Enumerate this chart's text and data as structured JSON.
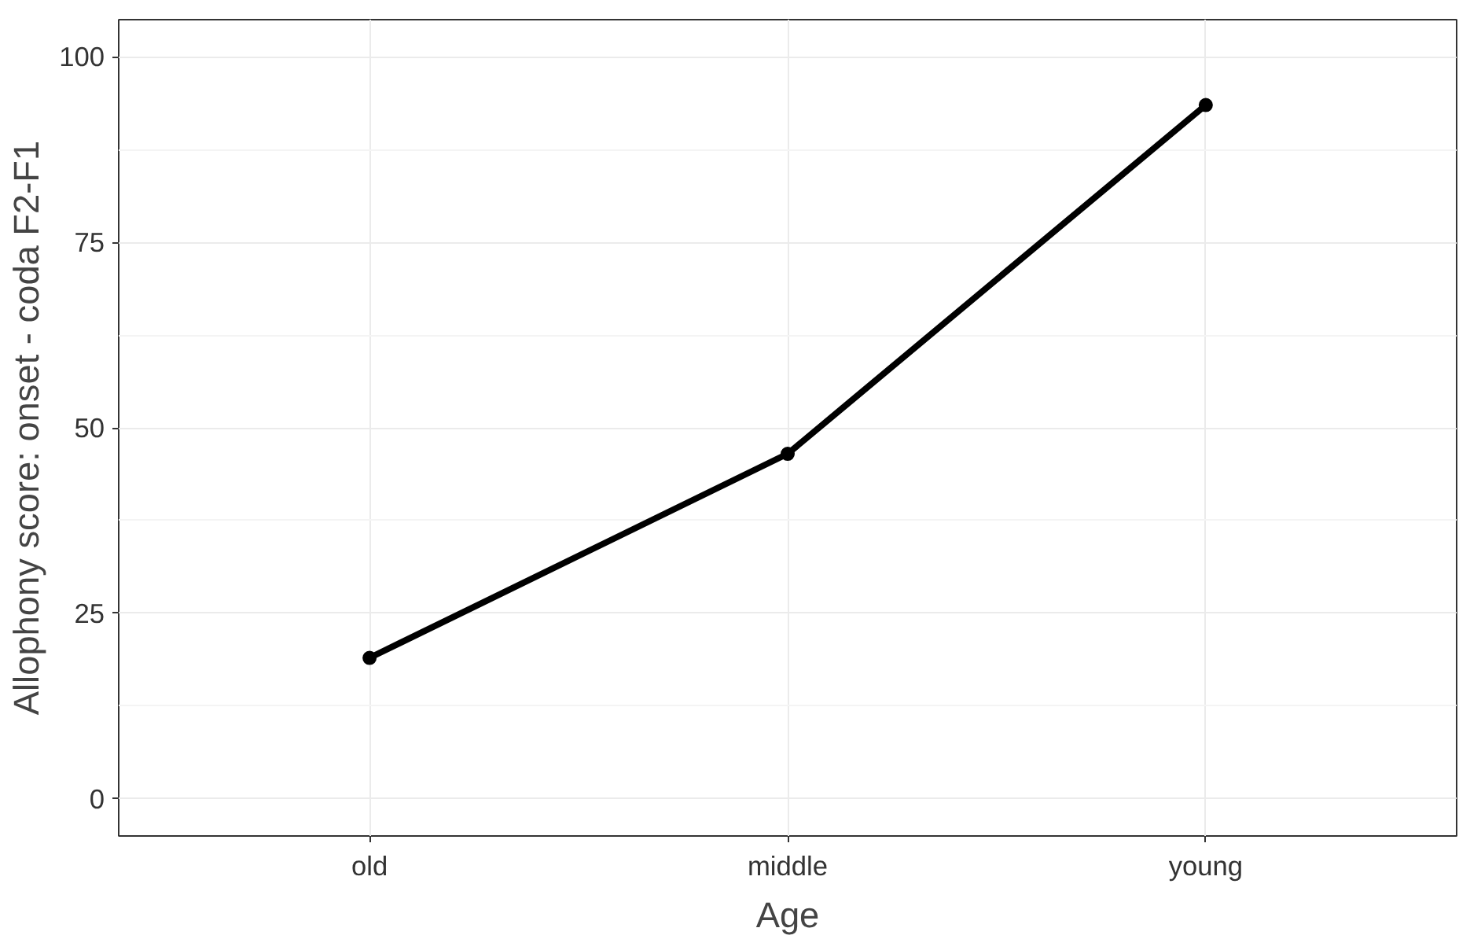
{
  "chart_data": {
    "type": "line",
    "xlabel": "Age",
    "ylabel": "Allophony score: onset - coda F2-F1",
    "categories": [
      "old",
      "middle",
      "young"
    ],
    "series": [
      {
        "color": "#000000",
        "values": [
          19,
          46.5,
          93.5
        ]
      }
    ],
    "ylim": [
      -5,
      105
    ],
    "yticks": [
      0,
      25,
      50,
      75,
      100
    ],
    "grid": true,
    "marker": "circle",
    "line_style": "solid"
  }
}
